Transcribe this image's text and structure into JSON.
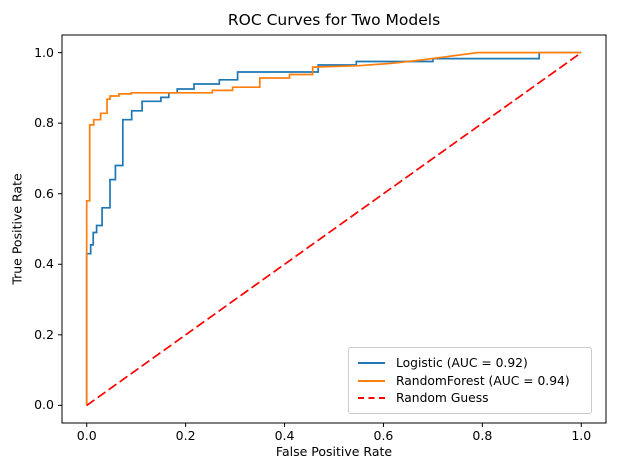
{
  "chart_data": {
    "type": "line",
    "title": "ROC Curves for Two Models",
    "xlabel": "False Positive Rate",
    "ylabel": "True Positive Rate",
    "xlim": [
      -0.05,
      1.05
    ],
    "ylim": [
      -0.05,
      1.05
    ],
    "grid": false,
    "legend_position": "lower right",
    "x_ticks": {
      "values": [
        0.0,
        0.2,
        0.4,
        0.6,
        0.8,
        1.0
      ],
      "labels": [
        "0.0",
        "0.2",
        "0.4",
        "0.6",
        "0.8",
        "1.0"
      ]
    },
    "y_ticks": {
      "values": [
        0.0,
        0.2,
        0.4,
        0.6,
        0.8,
        1.0
      ],
      "labels": [
        "0.0",
        "0.2",
        "0.4",
        "0.6",
        "0.8",
        "1.0"
      ]
    },
    "series": [
      {
        "name": "Logistic (AUC = 0.92)",
        "auc": 0.92,
        "color": "#1f77b4",
        "style": "solid",
        "points": [
          [
            0.0,
            0.0
          ],
          [
            0.0,
            0.43
          ],
          [
            0.008,
            0.43
          ],
          [
            0.008,
            0.455
          ],
          [
            0.013,
            0.455
          ],
          [
            0.013,
            0.49
          ],
          [
            0.02,
            0.49
          ],
          [
            0.02,
            0.51
          ],
          [
            0.031,
            0.51
          ],
          [
            0.031,
            0.56
          ],
          [
            0.047,
            0.56
          ],
          [
            0.047,
            0.64
          ],
          [
            0.058,
            0.64
          ],
          [
            0.058,
            0.68
          ],
          [
            0.073,
            0.68
          ],
          [
            0.073,
            0.81
          ],
          [
            0.091,
            0.81
          ],
          [
            0.091,
            0.835
          ],
          [
            0.112,
            0.835
          ],
          [
            0.112,
            0.862
          ],
          [
            0.15,
            0.862
          ],
          [
            0.15,
            0.873
          ],
          [
            0.166,
            0.873
          ],
          [
            0.166,
            0.886
          ],
          [
            0.183,
            0.886
          ],
          [
            0.183,
            0.897
          ],
          [
            0.217,
            0.897
          ],
          [
            0.217,
            0.911
          ],
          [
            0.268,
            0.911
          ],
          [
            0.268,
            0.923
          ],
          [
            0.305,
            0.923
          ],
          [
            0.305,
            0.945
          ],
          [
            0.468,
            0.945
          ],
          [
            0.468,
            0.965
          ],
          [
            0.545,
            0.965
          ],
          [
            0.545,
            0.975
          ],
          [
            0.7,
            0.975
          ],
          [
            0.7,
            0.983
          ],
          [
            0.915,
            0.983
          ],
          [
            0.915,
            1.0
          ],
          [
            1.0,
            1.0
          ]
        ]
      },
      {
        "name": "RandomForest (AUC = 0.94)",
        "auc": 0.94,
        "color": "#ff7f0e",
        "style": "solid",
        "points": [
          [
            0.0,
            0.0
          ],
          [
            0.0,
            0.58
          ],
          [
            0.006,
            0.58
          ],
          [
            0.006,
            0.795
          ],
          [
            0.014,
            0.795
          ],
          [
            0.014,
            0.81
          ],
          [
            0.028,
            0.81
          ],
          [
            0.028,
            0.828
          ],
          [
            0.041,
            0.828
          ],
          [
            0.041,
            0.868
          ],
          [
            0.047,
            0.868
          ],
          [
            0.047,
            0.877
          ],
          [
            0.065,
            0.877
          ],
          [
            0.065,
            0.883
          ],
          [
            0.09,
            0.883
          ],
          [
            0.09,
            0.886
          ],
          [
            0.254,
            0.886
          ],
          [
            0.254,
            0.893
          ],
          [
            0.295,
            0.893
          ],
          [
            0.295,
            0.902
          ],
          [
            0.35,
            0.902
          ],
          [
            0.35,
            0.928
          ],
          [
            0.41,
            0.928
          ],
          [
            0.41,
            0.938
          ],
          [
            0.457,
            0.938
          ],
          [
            0.457,
            0.959
          ],
          [
            0.55,
            0.963
          ],
          [
            0.62,
            0.97
          ],
          [
            0.67,
            0.978
          ],
          [
            0.72,
            0.987
          ],
          [
            0.79,
            1.0
          ],
          [
            1.0,
            1.0
          ]
        ]
      },
      {
        "name": "Random Guess",
        "color": "#ff0000",
        "style": "dashed",
        "points": [
          [
            0.0,
            0.0
          ],
          [
            1.0,
            1.0
          ]
        ]
      }
    ]
  }
}
